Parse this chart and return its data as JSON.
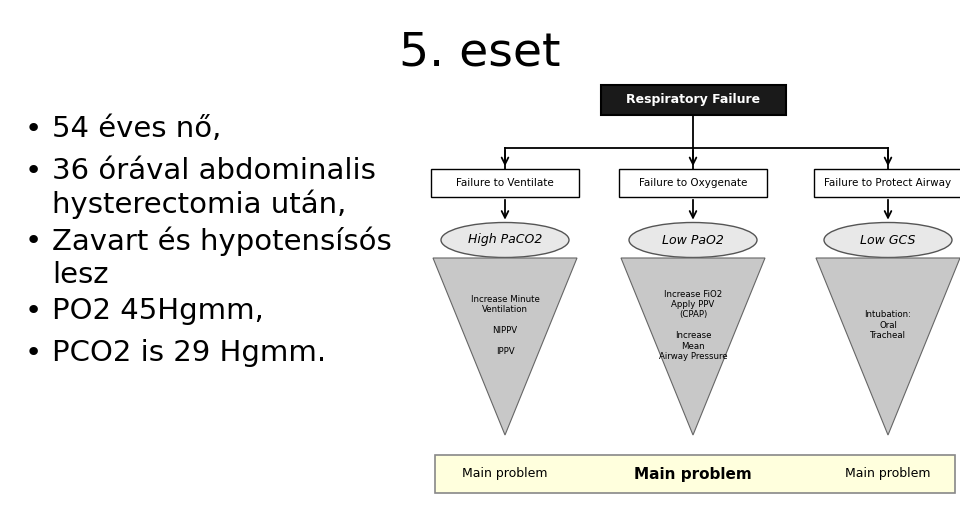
{
  "title": "5. eset",
  "bullets": [
    "54 éves nő,",
    "36 órával abdominalis\nhysterectomia után,",
    "Zavart és hypotensísós\nlesz",
    "PO2 45Hgmm,",
    "PCO2 is 29 Hgmm."
  ],
  "bg_color": "#ffffff",
  "title_fontsize": 34,
  "bullet_fontsize": 21,
  "diagram": {
    "top_box": {
      "text": "Respiratory Failure",
      "bg": "#1a1a1a",
      "fg": "#ffffff"
    },
    "level2_boxes": [
      {
        "text": "Failure to Ventilate"
      },
      {
        "text": "Failure to Oxygenate"
      },
      {
        "text": "Failure to Protect Airway"
      }
    ],
    "ellipses": [
      {
        "text": "High PaCO2"
      },
      {
        "text": "Low PaO2"
      },
      {
        "text": "Low GCS"
      }
    ],
    "triangles": [
      {
        "text": "Increase Minute\nVentilation\n\nNIPPV\n\nIPPV"
      },
      {
        "text": "Increase FiO2\nApply PPV\n(CPAP)\n\nIncrease\nMean\nAirway Pressure"
      },
      {
        "text": "Intubation:\nOral\nTracheal"
      }
    ],
    "bottom_box": {
      "text_left": "Main problem",
      "text_center": "Main problem",
      "text_right": "Main problem",
      "bg": "#ffffdd",
      "border": "#aaaaaa"
    }
  }
}
